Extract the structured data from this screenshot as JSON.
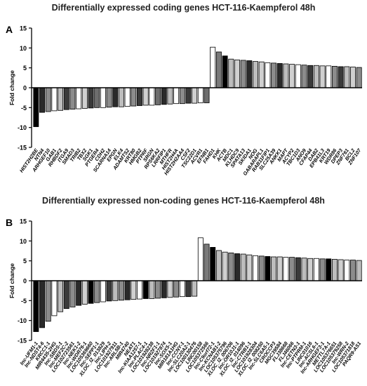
{
  "chart_data": [
    {
      "id": "A",
      "type": "bar",
      "title": "Differentially expressed coding genes  HCT-116-Kaempferol 48h",
      "panel_label": "A",
      "ylabel": "Fold change",
      "ylim": [
        -15,
        15
      ],
      "yticks": [
        15,
        10,
        5,
        0,
        -5,
        -10,
        -15
      ],
      "grid": false,
      "categories": [
        "HIST2H2BE",
        "NTN4",
        "ARHGEF10",
        "GAB1",
        "RHBDF2",
        "ITGA9",
        "SMAD3",
        "TRIB2",
        "TBX2",
        "SGK1",
        "PTGER4",
        "CDH2",
        "SCARNA14",
        "EPGN",
        "ELK4",
        "ADAMTS2",
        "KRT80",
        "HMGB2",
        "PTPRF",
        "SRGN",
        "RPS6KA2",
        "LRRFIP1",
        "MTHFR",
        "HIST2H4A",
        "HIST2H2AA4",
        "CSF2",
        "TSC22D1",
        "ACVR1",
        "EFNB1",
        "FAHD1",
        "KHK",
        "ACTB",
        "MDC1",
        "KLHDC9",
        "SPATA13",
        "SKIDA1",
        "NOG",
        "GABARAPL1",
        "RAB11FIP1",
        "SLC25A39",
        "ANKK1",
        "MAPT",
        "ACYP2",
        "TBC1D3",
        "ANO9",
        "CFAP44",
        "DAB2",
        "EPB41L3",
        "KRT19",
        "WDR86",
        "DPEP3",
        "ZNF761",
        "BCL2",
        "ZNF107"
      ],
      "values": [
        -9.8,
        -6.2,
        -6.0,
        -5.8,
        -5.7,
        -5.5,
        -5.4,
        -5.3,
        -5.2,
        -5.1,
        -5.0,
        -5.0,
        -4.9,
        -4.8,
        -4.8,
        -4.7,
        -4.6,
        -4.5,
        -4.4,
        -4.4,
        -4.3,
        -4.2,
        -4.1,
        -4.0,
        -4.0,
        -3.9,
        -3.9,
        -3.8,
        -3.8,
        10.2,
        9.0,
        8.0,
        7.2,
        7.0,
        6.9,
        6.8,
        6.6,
        6.5,
        6.3,
        6.2,
        6.1,
        6.0,
        5.9,
        5.8,
        5.7,
        5.6,
        5.6,
        5.5,
        5.5,
        5.4,
        5.3,
        5.3,
        5.2,
        5.1
      ],
      "fills": [
        "#000000",
        "#2a2a2a",
        "#8c8c8c",
        "#ffffff",
        "#bdbdbd",
        "#3a3a3a",
        "#8c8c8c",
        "#ffffff",
        "#d0d0d0",
        "#3a3a3a",
        "#6e6e6e",
        "#ffffff",
        "#8c8c8c",
        "#2a2a2a",
        "#bdbdbd",
        "#ffffff",
        "#8c8c8c",
        "#3a3a3a",
        "#d0d0d0",
        "#ffffff",
        "#6e6e6e",
        "#2a2a2a",
        "#bdbdbd",
        "#ffffff",
        "#8c8c8c",
        "#3a3a3a",
        "#d0d0d0",
        "#ffffff",
        "#6e6e6e",
        "#ffffff",
        "#7a7a7a",
        "#000000",
        "#bdbdbd",
        "#d0d0d0",
        "#8c8c8c",
        "#2a2a2a",
        "#bdbdbd",
        "#d0d0d0",
        "#ffffff",
        "#8c8c8c",
        "#2a2a2a",
        "#bdbdbd",
        "#d0d0d0",
        "#ffffff",
        "#8c8c8c",
        "#3a3a3a",
        "#bdbdbd",
        "#d0d0d0",
        "#ffffff",
        "#8c8c8c",
        "#3a3a3a",
        "#bdbdbd",
        "#d0d0d0",
        "#8c8c8c"
      ]
    },
    {
      "id": "B",
      "type": "bar",
      "title": "Differentially expressed non-coding genes HCT-116-Kaempferol 48h",
      "panel_label": "B",
      "ylabel": "Fold change",
      "ylim": [
        -15,
        15
      ],
      "yticks": [
        15,
        10,
        5,
        0,
        -5,
        -10,
        -15
      ],
      "grid": false,
      "categories": [
        "lnc-UFM1-1",
        "lnc-NDST4-6",
        "KRCC1-1",
        "MIR4435-2HG",
        "lnc-SBDS-1",
        "lnc-MEF2C-2",
        "LOC102723561",
        "lnc-NEK1-2",
        "lnc-WDR76-1",
        "LOC105369660",
        "lnc-SEPP1-1",
        "XLOC_l2_013829",
        "lnc-LIPH-2",
        "LOC101927911",
        "lnc-ARL5B-1",
        "MIR4740",
        "NEAT1",
        "lnc-KIAA1257-1",
        "lnc-PLAC4-1",
        "LOC101928238",
        "lnc-NR2F1-1",
        "LOC101927874",
        "lnc-SOX5-1",
        "MIR181A1HG",
        "lnc-CCNY-1",
        "lnc-SLC20A2-1",
        "LOC100130476",
        "LINC00158",
        "LOC105372566",
        "lnc-C9orf72-1",
        "lnc-KCNAB1-2",
        "LOC105375796",
        "XLOC_l2_006706",
        "lnc-OR10J1-1",
        "XLOC_l2_014096",
        "lnc-CTRB1-1",
        "LOC101928304",
        "XLOC_l2_008250",
        "lnc-SLC6A5-1",
        "CROCCP3",
        "MGC39584",
        "FLJ38668",
        "FLJ46066",
        "lnc-CETN3-1",
        "lnc-PTPRM-1",
        "LINC01016",
        "lnc-ACSL6-1",
        "lnc-ARHGEF3-1",
        "METTL7A-1",
        "LOC105376651",
        "LOC105379258",
        "lnc-WRN-2",
        "LOC105371818",
        "PAQR9-AS1"
      ],
      "values": [
        -12.8,
        -11.8,
        -10.2,
        -8.8,
        -7.8,
        -7.0,
        -6.6,
        -6.2,
        -5.9,
        -5.7,
        -5.5,
        -5.3,
        -5.1,
        -5.0,
        -4.9,
        -4.8,
        -4.7,
        -4.6,
        -4.5,
        -4.5,
        -4.4,
        -4.3,
        -4.2,
        -4.1,
        -4.0,
        -4.0,
        -3.9,
        10.8,
        9.2,
        8.4,
        7.6,
        7.2,
        7.0,
        6.8,
        6.7,
        6.5,
        6.3,
        6.2,
        6.1,
        6.0,
        6.0,
        5.9,
        5.9,
        5.8,
        5.7,
        5.6,
        5.6,
        5.5,
        5.5,
        5.4,
        5.3,
        5.2,
        5.2,
        5.1
      ],
      "fills": [
        "#000000",
        "#2a2a2a",
        "#8c8c8c",
        "#ffffff",
        "#bdbdbd",
        "#3a3a3a",
        "#8c8c8c",
        "#2a2a2a",
        "#d0d0d0",
        "#000000",
        "#8c8c8c",
        "#ffffff",
        "#3a3a3a",
        "#bdbdbd",
        "#8c8c8c",
        "#2a2a2a",
        "#d0d0d0",
        "#ffffff",
        "#000000",
        "#bdbdbd",
        "#8c8c8c",
        "#2a2a2a",
        "#d0d0d0",
        "#8c8c8c",
        "#ffffff",
        "#3a3a3a",
        "#bdbdbd",
        "#ffffff",
        "#7a7a7a",
        "#000000",
        "#bdbdbd",
        "#d0d0d0",
        "#8c8c8c",
        "#2a2a2a",
        "#bdbdbd",
        "#d0d0d0",
        "#ffffff",
        "#8c8c8c",
        "#000000",
        "#bdbdbd",
        "#d0d0d0",
        "#ffffff",
        "#8c8c8c",
        "#3a3a3a",
        "#bdbdbd",
        "#d0d0d0",
        "#ffffff",
        "#8c8c8c",
        "#000000",
        "#bdbdbd",
        "#d0d0d0",
        "#ffffff",
        "#8c8c8c",
        "#bdbdbd"
      ]
    }
  ]
}
